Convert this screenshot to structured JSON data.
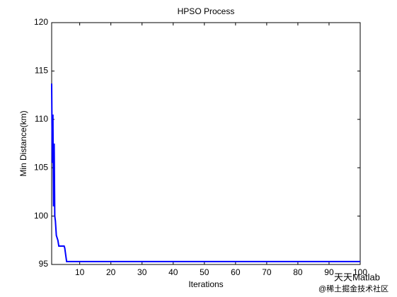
{
  "chart_data": {
    "type": "line",
    "title": "HPSO Process",
    "x_label": "Iterations",
    "y_label": "Min Distance(km)",
    "x": [
      1,
      1.2,
      1.4,
      1.6,
      1.8,
      2,
      2.2,
      2.5,
      3,
      3.3,
      5,
      5.2,
      5.8,
      100
    ],
    "series": [
      {
        "name": "HPSO",
        "color": "#0000ff",
        "values": [
          113.7,
          105.5,
          110.5,
          101,
          107.5,
          100,
          99.5,
          98,
          97.5,
          96.9,
          96.9,
          96.7,
          95.3,
          95.3
        ]
      }
    ],
    "xlim": [
      1,
      100
    ],
    "xticks": [
      10,
      20,
      30,
      40,
      50,
      60,
      70,
      80,
      90,
      100
    ],
    "ylim": [
      95,
      120
    ],
    "yticks": [
      95,
      100,
      105,
      110,
      115,
      120
    ],
    "grid": false,
    "watermark": [
      "天天Matlab",
      "@稀土掘金技术社区"
    ]
  }
}
